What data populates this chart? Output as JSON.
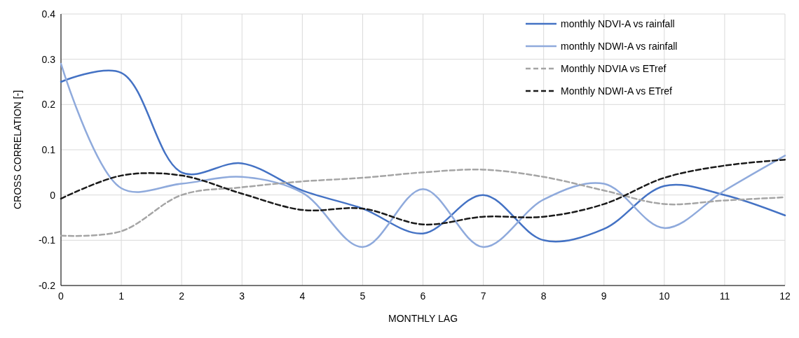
{
  "chart_data": {
    "type": "line",
    "xlabel": "MONTHLY LAG",
    "ylabel": "CROSS CORRELATION [-]",
    "x": [
      0,
      1,
      2,
      3,
      4,
      5,
      6,
      7,
      8,
      9,
      10,
      11,
      12
    ],
    "xlim": [
      0,
      12
    ],
    "xticks": [
      0,
      1,
      2,
      3,
      4,
      5,
      6,
      7,
      8,
      9,
      10,
      11,
      12
    ],
    "ylim": [
      -0.2,
      0.4
    ],
    "yticks": [
      {
        "value": -0.2,
        "label": "-0.2"
      },
      {
        "value": -0.1,
        "label": "-0.1"
      },
      {
        "value": 0,
        "label": "0"
      },
      {
        "value": 0.1,
        "label": "0.1"
      },
      {
        "value": 0.2,
        "label": "0.2"
      },
      {
        "value": 0.3,
        "label": "0.3"
      },
      {
        "value": 0.4,
        "label": "0.4"
      }
    ],
    "grid": true,
    "legend": "top right",
    "marker": "none",
    "series": [
      {
        "name": "monthly NDVI-A vs rainfall",
        "color": "#4472c4",
        "line_style": "solid",
        "values": [
          0.25,
          0.27,
          0.05,
          0.07,
          0.01,
          -0.03,
          -0.085,
          0.0,
          -0.1,
          -0.075,
          0.02,
          0.0,
          -0.045
        ]
      },
      {
        "name": "monthly NDWI-A vs rainfall",
        "color": "#8faadc",
        "line_style": "solid",
        "values": [
          0.29,
          0.015,
          0.025,
          0.04,
          0.005,
          -0.115,
          0.013,
          -0.115,
          -0.01,
          0.025,
          -0.073,
          0.01,
          0.087
        ]
      },
      {
        "name": "Monthly NDVIA vs ETref",
        "color": "#a5a5a5",
        "line_style": "dashed",
        "values": [
          -0.09,
          -0.08,
          0.0,
          0.017,
          0.03,
          0.038,
          0.05,
          0.056,
          0.04,
          0.01,
          -0.02,
          -0.012,
          -0.005
        ]
      },
      {
        "name": "Monthly NDWI-A vs ETref",
        "color": "#1a1a1a",
        "line_style": "dashed",
        "values": [
          -0.008,
          0.043,
          0.043,
          0.003,
          -0.033,
          -0.03,
          -0.065,
          -0.048,
          -0.048,
          -0.02,
          0.038,
          0.065,
          0.078
        ]
      }
    ]
  }
}
